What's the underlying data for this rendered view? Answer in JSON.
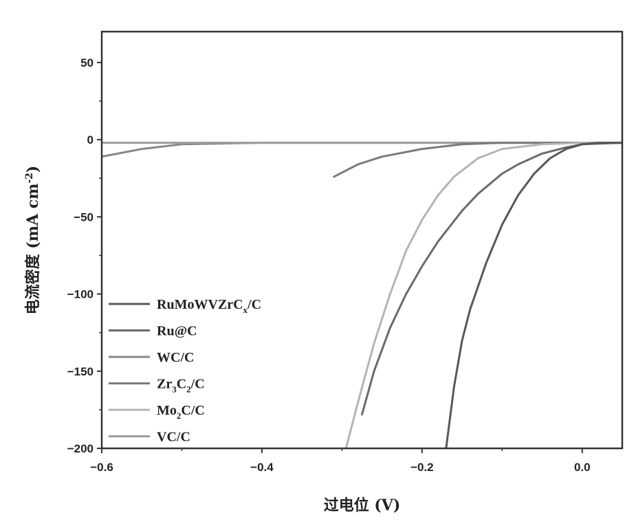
{
  "chart_data": {
    "type": "line",
    "title": "",
    "xlabel": "过电位 (V)",
    "ylabel": "电流密度 (mA cm",
    "ylabel_sup": "-2",
    "ylabel_end": ")",
    "xlim": [
      -0.6,
      0.05
    ],
    "ylim": [
      -200,
      70
    ],
    "x_ticks": [
      -0.6,
      -0.4,
      -0.2,
      0.0
    ],
    "x_tick_labels": [
      "-0.6",
      "-0.4",
      "-0.2",
      "0.0"
    ],
    "y_ticks": [
      50,
      0,
      -50,
      -100,
      -150,
      -200
    ],
    "y_tick_labels": [
      "50",
      "0",
      "-50",
      "-100",
      "-150",
      "-200"
    ],
    "grid": false,
    "legend_position": "bottom-left",
    "series": [
      {
        "name": "RuMoWVZrCx/C",
        "label_main": "RuMoWVZrC",
        "label_sub": "x",
        "label_tail": "/C",
        "color": "#575757",
        "x": [
          0.05,
          0.02,
          0.0,
          -0.02,
          -0.04,
          -0.06,
          -0.08,
          -0.1,
          -0.12,
          -0.14,
          -0.15,
          -0.16,
          -0.17
        ],
        "y": [
          -2,
          -2,
          -3,
          -6,
          -12,
          -22,
          -36,
          -55,
          -80,
          -110,
          -130,
          -160,
          -200
        ]
      },
      {
        "name": "Ru@C",
        "label_main": "Ru@C",
        "label_sub": "",
        "label_tail": "",
        "color": "#6a6a6a",
        "x": [
          0.05,
          0.0,
          -0.02,
          -0.05,
          -0.08,
          -0.1,
          -0.13,
          -0.15,
          -0.18,
          -0.2,
          -0.22,
          -0.24,
          -0.26,
          -0.275
        ],
        "y": [
          -2,
          -3,
          -5,
          -9,
          -16,
          -22,
          -35,
          -46,
          -66,
          -82,
          -100,
          -122,
          -150,
          -178
        ]
      },
      {
        "name": "WC/C",
        "label_main": "WC/C",
        "label_sub": "",
        "label_tail": "",
        "color": "#888888",
        "x": [
          0.05,
          -0.1,
          -0.2,
          -0.3,
          -0.4,
          -0.5,
          -0.55,
          -0.6
        ],
        "y": [
          -2,
          -2,
          -2,
          -2,
          -2,
          -3,
          -6,
          -11
        ]
      },
      {
        "name": "Zr3C2/C",
        "label_main": "Zr",
        "label_sub": "3",
        "label_tail": "C",
        "label_sub2": "2",
        "label_tail2": "/C",
        "color": "#7a7a7a",
        "x": [
          0.05,
          -0.05,
          -0.1,
          -0.15,
          -0.2,
          -0.25,
          -0.28,
          -0.31
        ],
        "y": [
          -2,
          -2,
          -2,
          -3,
          -6,
          -11,
          -16,
          -24
        ]
      },
      {
        "name": "Mo2C/C",
        "label_main": "Mo",
        "label_sub": "2",
        "label_tail": "C/C",
        "color": "#b4b4b4",
        "x": [
          0.05,
          0.0,
          -0.05,
          -0.1,
          -0.13,
          -0.16,
          -0.18,
          -0.2,
          -0.22,
          -0.24,
          -0.26,
          -0.28,
          -0.295
        ],
        "y": [
          -2,
          -2,
          -3,
          -6,
          -12,
          -24,
          -36,
          -52,
          -72,
          -100,
          -132,
          -170,
          -200
        ]
      },
      {
        "name": "VC/C",
        "label_main": "VC/C",
        "label_sub": "",
        "label_tail": "",
        "color": "#9c9c9c",
        "x": [
          0.05,
          -0.1,
          -0.2,
          -0.3,
          -0.4,
          -0.5,
          -0.6
        ],
        "y": [
          -2,
          -2,
          -2,
          -2,
          -2,
          -2,
          -2
        ]
      }
    ]
  }
}
